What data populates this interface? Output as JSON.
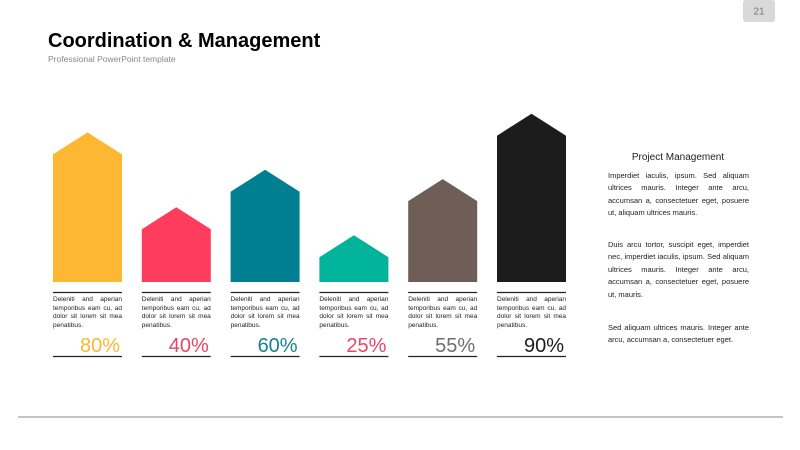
{
  "chart_data": {
    "type": "bar",
    "title": "Coordination & Management",
    "subtitle": "Professional PowerPoint template",
    "page_number": "21",
    "captions": [
      "Deleniti and aperian temporibus eam cu, ad dolor sit lorem sit mea penatibus.",
      "Deleniti and aperian temporibus eam cu, ad dolor sit lorem sit mea penatibus.",
      "Deleniti and aperian temporibus eam cu, ad dolor sit lorem sit mea penatibus.",
      "Deleniti and aperian temporibus eam cu, ad dolor sit lorem sit mea penatibus.",
      "Deleniti and aperian temporibus eam cu, ad dolor sit lorem sit mea penatibus.",
      "Deleniti and aperian temporibus eam cu, ad dolor sit lorem sit mea penatibus."
    ],
    "values": [
      80,
      40,
      60,
      25,
      55,
      90
    ],
    "value_labels": [
      "80%",
      "40%",
      "60%",
      "25%",
      "55%",
      "90%"
    ],
    "colors": [
      "#fdb733",
      "#fe3d5e",
      "#007f92",
      "#00b39a",
      "#6e5e57",
      "#1c1c1c"
    ],
    "label_colors": [
      "#fdb733",
      "#e8456a",
      "#16818f",
      "#e8456a",
      "#6e6e6e",
      "#1c1c1c"
    ],
    "ylim": [
      0,
      100
    ]
  },
  "side": {
    "title": "Project Management",
    "paragraphs": [
      "Imperdiet iaculis, ipsum. Sed aliquam ultrices mauris. Integer ante arcu, accumsan a, consectetuer eget, posuere ut, aliquam ultrices mauris.",
      "Duis arcu tortor, suscipit eget, imperdiet nec, imperdiet iaculis, ipsum. Sed aliquam ultrices mauris. Integer ante arcu, accumsan a, consectetuer eget, posuere ut, mauris.",
      "Sed aliquam ultrices mauris. Integer ante arcu, accumsan a, consectetuer eget."
    ]
  }
}
